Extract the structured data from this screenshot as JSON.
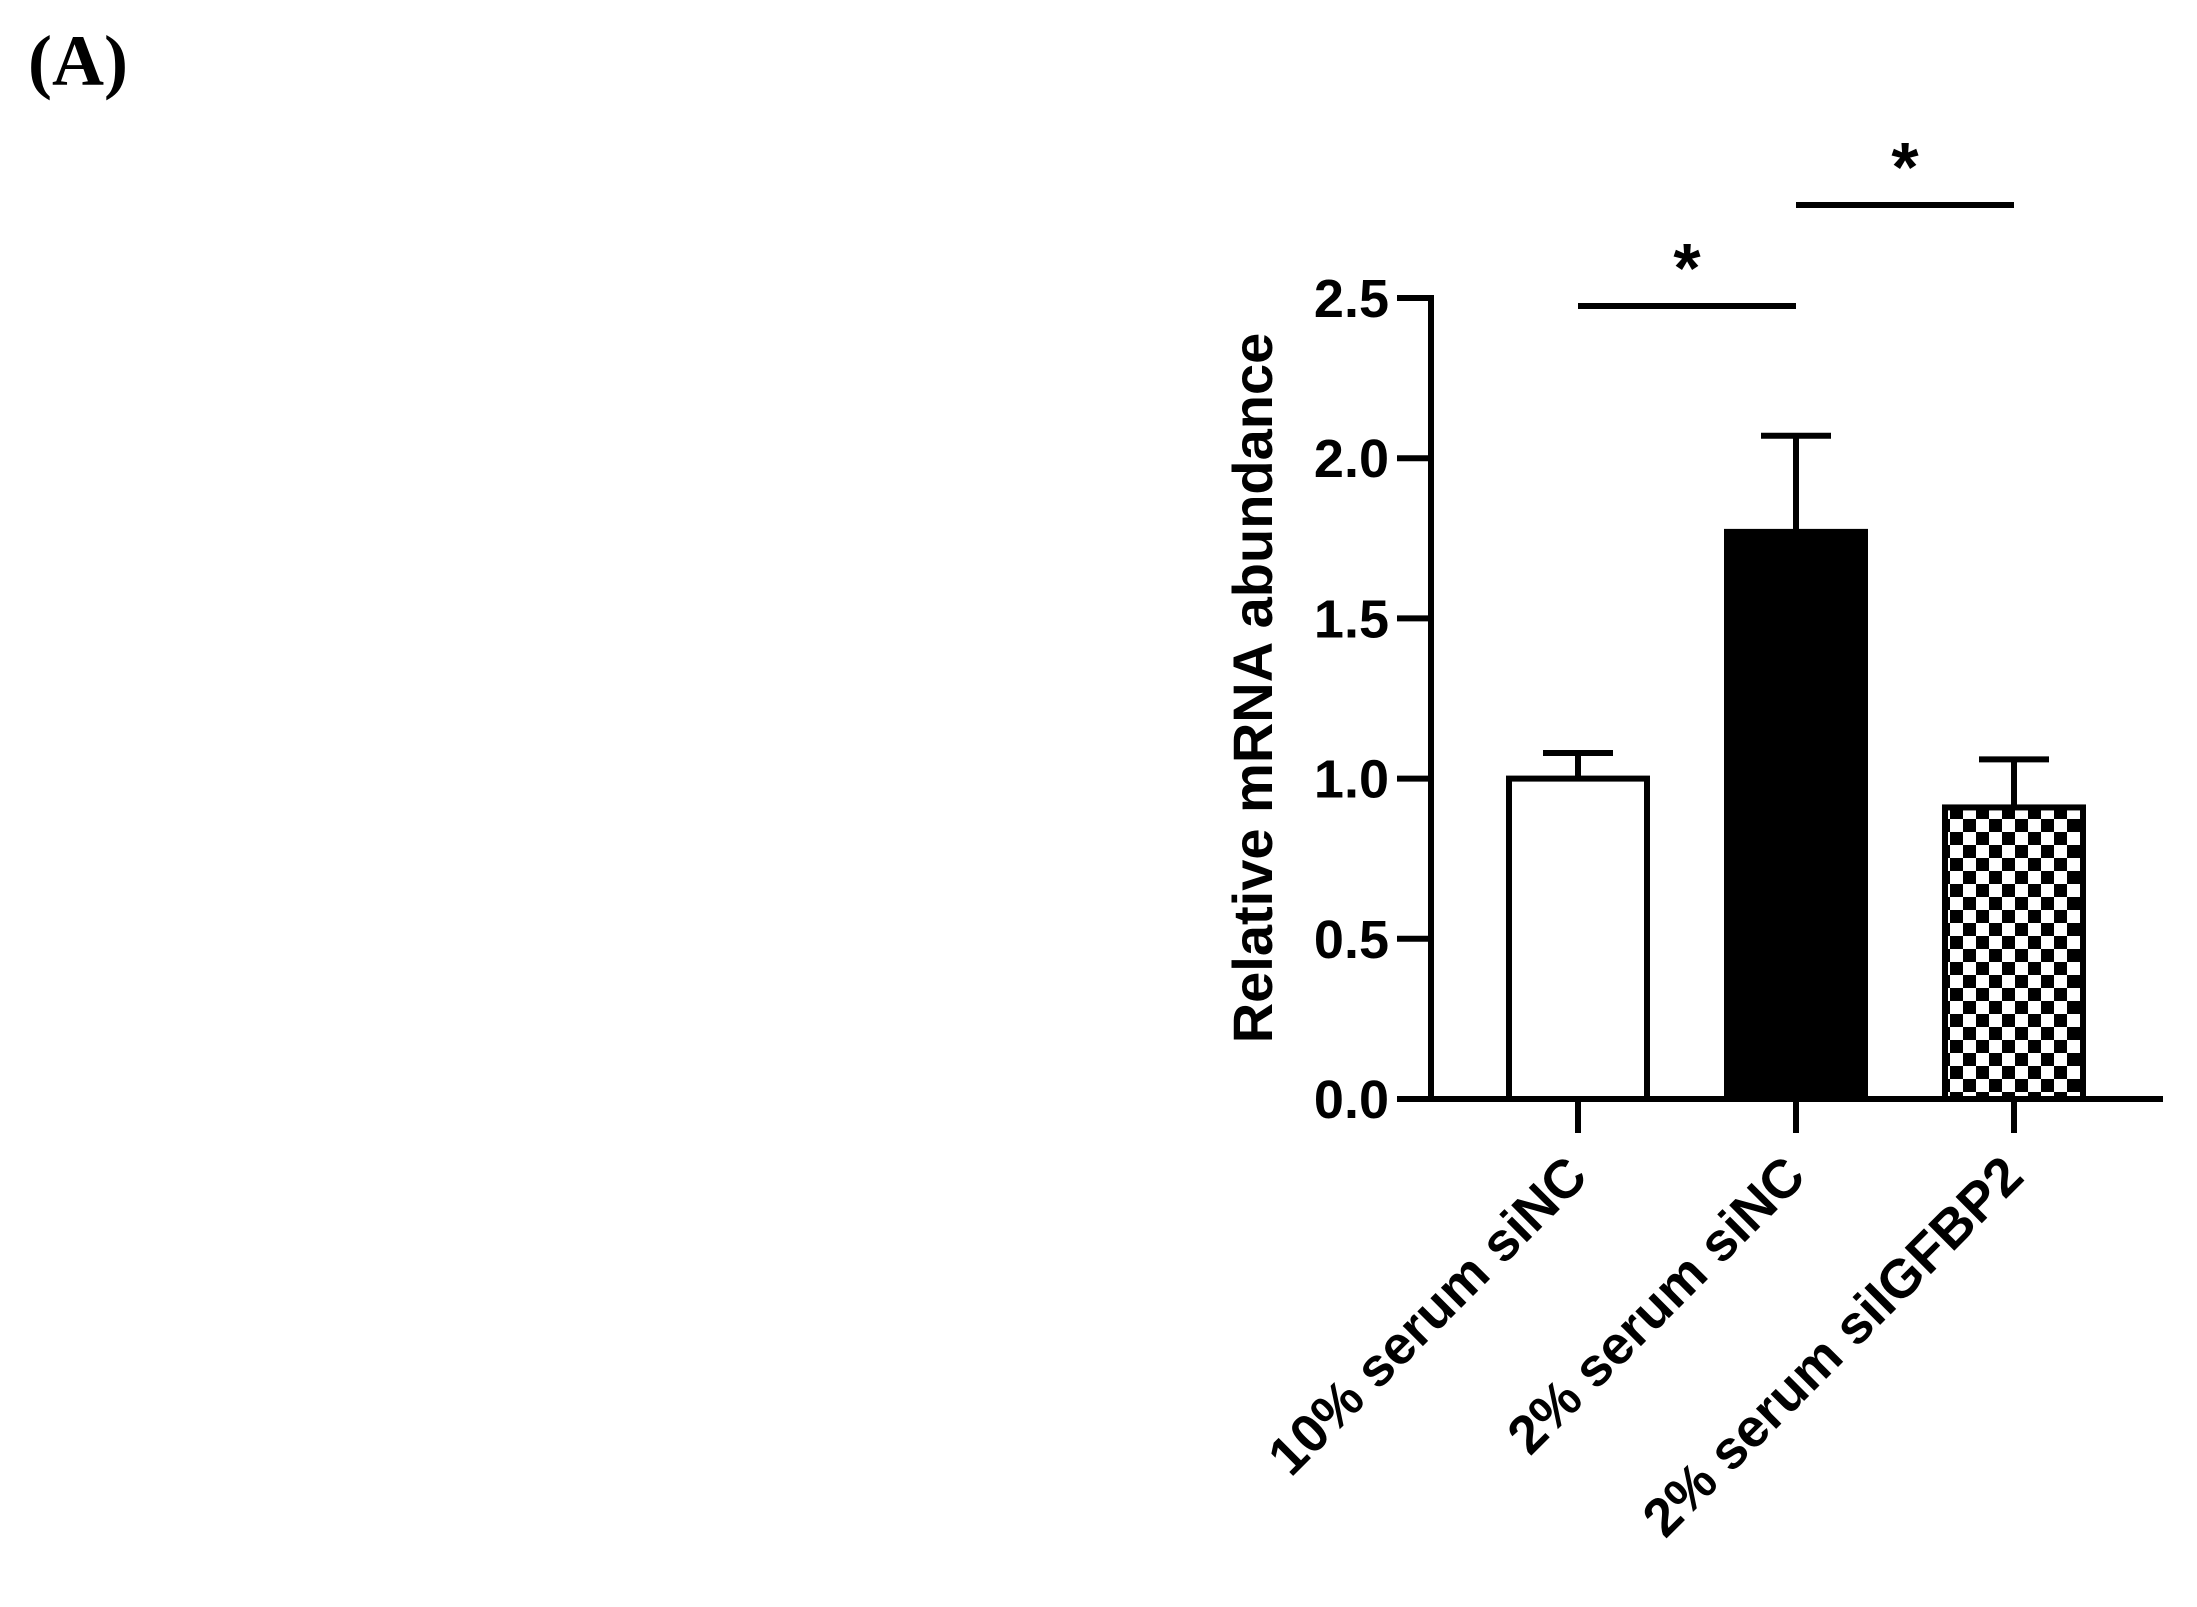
{
  "panel_label": "(A)",
  "chart_data": {
    "type": "bar",
    "title": "",
    "xlabel": "",
    "ylabel": "Relative mRNA abundance",
    "ylim": [
      0,
      2.5
    ],
    "yticks": [
      0.0,
      0.5,
      1.0,
      1.5,
      2.0,
      2.5
    ],
    "ytick_labels": [
      "0.0",
      "0.5",
      "1.0",
      "1.5",
      "2.0",
      "2.5"
    ],
    "categories": [
      "10% serum siNC",
      "2% serum siNC",
      "2% serum siIGFBP2"
    ],
    "values": [
      1.0,
      1.77,
      0.91
    ],
    "errors": [
      0.08,
      0.3,
      0.15
    ],
    "fills": [
      "white",
      "black",
      "checkerboard"
    ],
    "colors": {
      "axis": "#000000",
      "bar_solid": "#000000",
      "bar_empty": "#ffffff"
    },
    "significance": [
      {
        "from": 0,
        "to": 1,
        "label": "*"
      },
      {
        "from": 1,
        "to": 2,
        "label": "*"
      }
    ]
  }
}
